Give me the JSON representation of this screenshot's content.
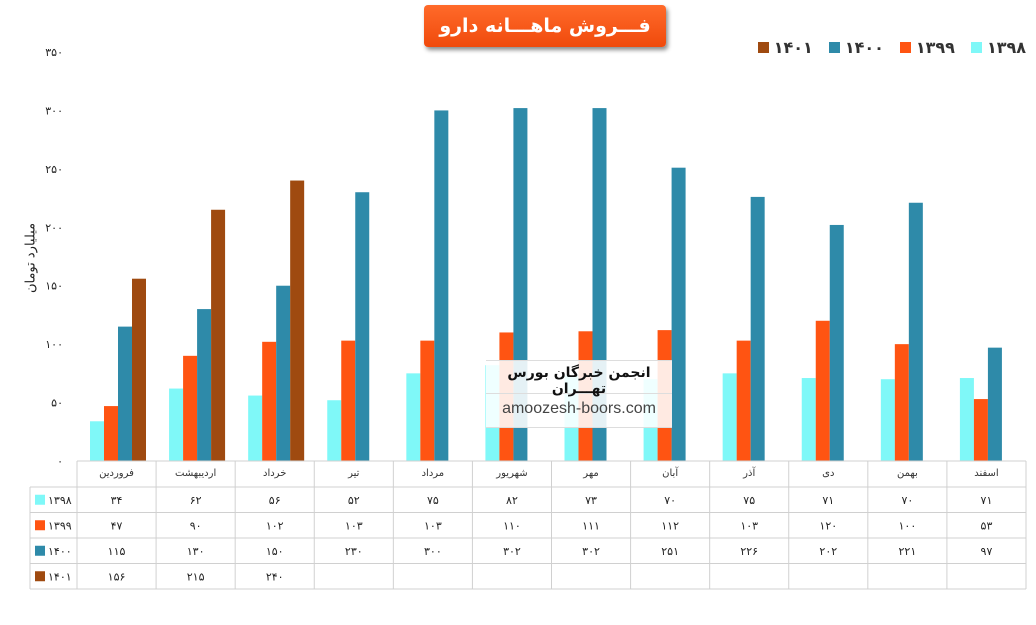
{
  "title": "فـــروش ماهـــانه دارو",
  "watermark": {
    "title": "انجمن خبرگان بورس تهـــران",
    "url": "amoozesh-boors.com"
  },
  "chart_data": {
    "type": "bar",
    "title": "فـــروش ماهـــانه دارو",
    "ylabel": "میلیارد تومان",
    "ylim": [
      0,
      350
    ],
    "yticks": [
      0,
      50,
      100,
      150,
      200,
      250,
      300,
      350
    ],
    "ytick_labels": [
      "۰",
      "۵۰",
      "۱۰۰",
      "۱۵۰",
      "۲۰۰",
      "۲۵۰",
      "۳۰۰",
      "۳۵۰"
    ],
    "legend_position": "top-right",
    "categories": [
      "فروردین",
      "اردیبهشت",
      "خرداد",
      "تیر",
      "مرداد",
      "شهریور",
      "مهر",
      "آبان",
      "آذر",
      "دی",
      "بهمن",
      "اسفند"
    ],
    "series": [
      {
        "name": "۱۳۹۸",
        "color": "#7ff8f8",
        "values": [
          34,
          62,
          56,
          52,
          75,
          82,
          73,
          70,
          75,
          71,
          70,
          71
        ],
        "labels": [
          "۳۴",
          "۶۲",
          "۵۶",
          "۵۲",
          "۷۵",
          "۸۲",
          "۷۳",
          "۷۰",
          "۷۵",
          "۷۱",
          "۷۰",
          "۷۱"
        ]
      },
      {
        "name": "۱۳۹۹",
        "color": "#ff5412",
        "values": [
          47,
          90,
          102,
          103,
          103,
          110,
          111,
          112,
          103,
          120,
          100,
          53
        ],
        "labels": [
          "۴۷",
          "۹۰",
          "۱۰۲",
          "۱۰۳",
          "۱۰۳",
          "۱۱۰",
          "۱۱۱",
          "۱۱۲",
          "۱۰۳",
          "۱۲۰",
          "۱۰۰",
          "۵۳"
        ]
      },
      {
        "name": "۱۴۰۰",
        "color": "#2e8aa9",
        "values": [
          115,
          130,
          150,
          230,
          300,
          302,
          302,
          251,
          226,
          202,
          221,
          97
        ],
        "labels": [
          "۱۱۵",
          "۱۳۰",
          "۱۵۰",
          "۲۳۰",
          "۳۰۰",
          "۳۰۲",
          "۳۰۲",
          "۲۵۱",
          "۲۲۶",
          "۲۰۲",
          "۲۲۱",
          "۹۷"
        ]
      },
      {
        "name": "۱۴۰۱",
        "color": "#9f4a10",
        "values": [
          156,
          215,
          240,
          null,
          null,
          null,
          null,
          null,
          null,
          null,
          null,
          null
        ],
        "labels": [
          "۱۵۶",
          "۲۱۵",
          "۲۴۰",
          "",
          "",
          "",
          "",
          "",
          "",
          "",
          "",
          ""
        ]
      }
    ]
  }
}
